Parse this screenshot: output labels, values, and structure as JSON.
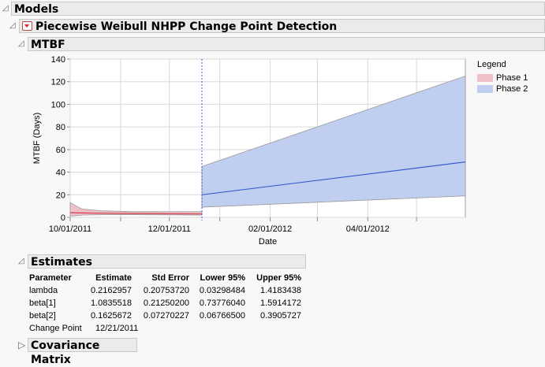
{
  "headers": {
    "models": "Models",
    "platform": "Piecewise Weibull NHPP Change Point Detection",
    "mtbf": "MTBF",
    "estimates": "Estimates",
    "covariance": "Covariance Matrix"
  },
  "legend": {
    "title": "Legend",
    "items": [
      {
        "label": "Phase 1",
        "color": "#f0c0c8"
      },
      {
        "label": "Phase 2",
        "color": "#c0cff0"
      }
    ]
  },
  "estimates": {
    "columns": [
      "Parameter",
      "Estimate",
      "Std Error",
      "Lower 95%",
      "Upper 95%"
    ],
    "rows": [
      [
        "lambda",
        "0.2162957",
        "0.20753720",
        "0.03298484",
        "1.4183438"
      ],
      [
        "beta[1]",
        "1.0835518",
        "0.21250200",
        "0.73776040",
        "1.5914172"
      ],
      [
        "beta[2]",
        "0.1625672",
        "0.07270227",
        "0.06766500",
        "0.3905727"
      ]
    ],
    "change_point_label": "Change Point",
    "change_point_value": "12/21/2011"
  },
  "chart_data": {
    "type": "area",
    "xlabel": "Date",
    "ylabel": "MTBF (Days)",
    "xlim": [
      "2011-10-01",
      "2012-05-31"
    ],
    "ylim": [
      0,
      140
    ],
    "yticks": [
      0,
      20,
      40,
      60,
      80,
      100,
      120,
      140
    ],
    "xticks": [
      "10/01/2011",
      "12/01/2011",
      "02/01/2012",
      "04/01/2012"
    ],
    "grid": true,
    "legend_placement": "right",
    "change_point": "2011-12-21",
    "series": [
      {
        "name": "Phase 1",
        "color": "#d04050",
        "fill": "#f0c0c8",
        "x": [
          "2011-10-01",
          "2011-10-08",
          "2011-10-20",
          "2011-11-10",
          "2011-12-21"
        ],
        "mean": [
          4.2,
          3.9,
          3.7,
          3.4,
          3.0
        ],
        "lower": [
          1.0,
          2.0,
          2.4,
          2.4,
          2.0
        ],
        "upper": [
          13,
          7.5,
          5.8,
          5.0,
          5.0
        ]
      },
      {
        "name": "Phase 2",
        "color": "#3a5fd0",
        "fill": "#c0cff0",
        "x": [
          "2011-12-21",
          "2012-05-31"
        ],
        "mean": [
          20,
          49
        ],
        "lower": [
          9,
          19
        ],
        "upper": [
          45,
          125
        ]
      }
    ]
  }
}
